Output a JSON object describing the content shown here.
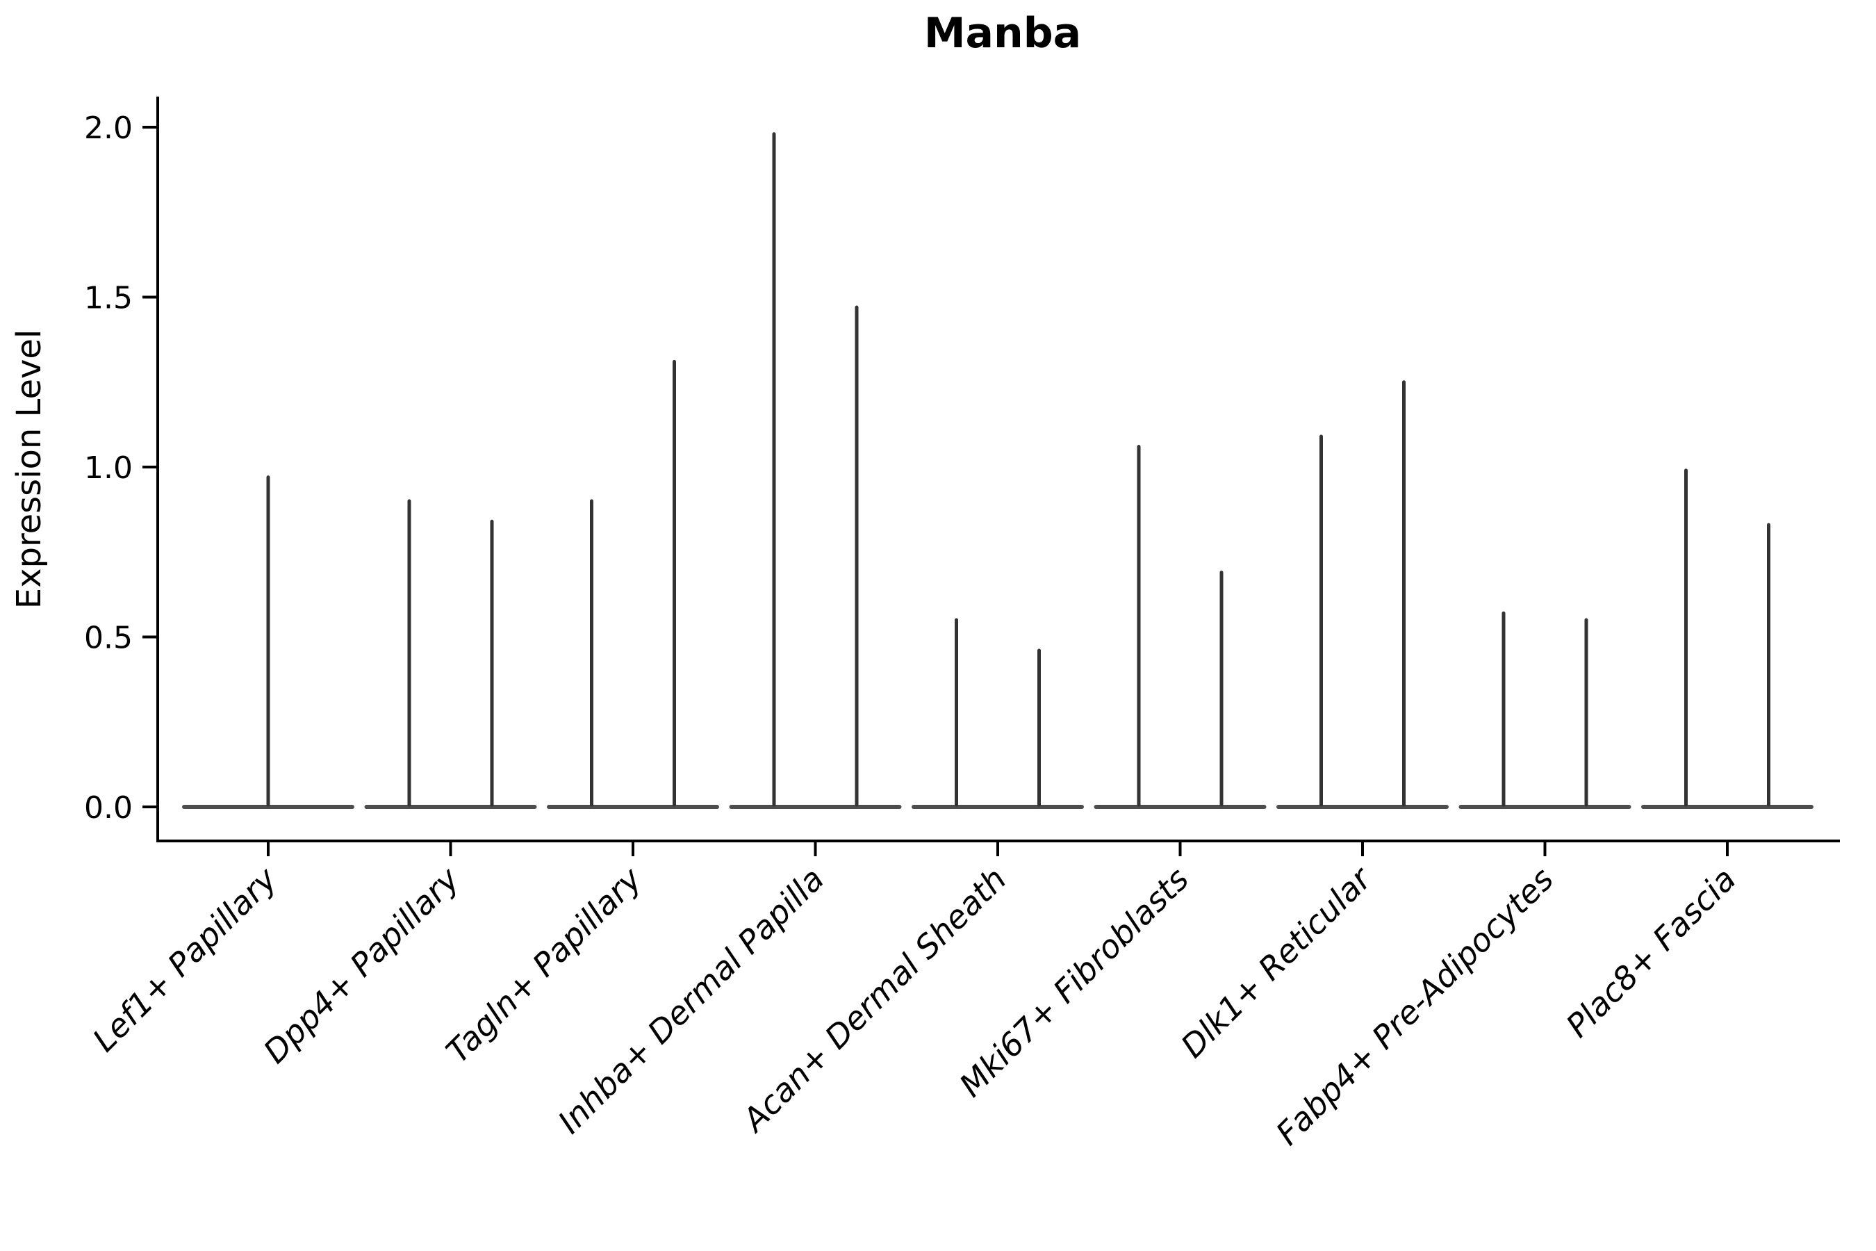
{
  "title": "Manba",
  "ylabel": "Expression Level",
  "chart_data": {
    "type": "violin",
    "title": "Manba",
    "xlabel": "",
    "ylabel": "Expression Level",
    "ylim": [
      0.0,
      2.0
    ],
    "yticks": [
      0.0,
      0.5,
      1.0,
      1.5,
      2.0
    ],
    "yticklabels": [
      "0.0",
      "0.5",
      "1.0",
      "1.5",
      "2.0"
    ],
    "grid": false,
    "legend": false,
    "baseline_value": 0.0,
    "categories": [
      "Lef1+ Papillary",
      "Dpp4+ Papillary",
      "Tagln+ Papillary",
      "Inhba+ Dermal Papilla",
      "Acan+ Dermal Sheath",
      "Mki67+ Fibroblasts",
      "Dlk1+ Reticular",
      "Fabp4+ Pre-Adipocytes",
      "Plac8+ Fascia"
    ],
    "violins": [
      {
        "category": "Lef1+ Papillary",
        "spikes": [
          0.97
        ]
      },
      {
        "category": "Dpp4+ Papillary",
        "spikes": [
          0.9,
          0.84
        ]
      },
      {
        "category": "Tagln+ Papillary",
        "spikes": [
          0.9,
          1.31
        ]
      },
      {
        "category": "Inhba+ Dermal Papilla",
        "spikes": [
          1.98,
          1.47
        ]
      },
      {
        "category": "Acan+ Dermal Sheath",
        "spikes": [
          0.55,
          0.46
        ]
      },
      {
        "category": "Mki67+ Fibroblasts",
        "spikes": [
          1.06,
          0.69
        ]
      },
      {
        "category": "Dlk1+ Reticular",
        "spikes": [
          1.09,
          1.25
        ]
      },
      {
        "category": "Fabp4+ Pre-Adipocytes",
        "spikes": [
          0.57,
          0.55
        ]
      },
      {
        "category": "Plac8+ Fascia",
        "spikes": [
          0.99,
          0.83
        ]
      }
    ],
    "colors": {
      "violin": "#333333",
      "violin_base": "#4d4d4d",
      "axis": "#000000",
      "background": "#ffffff"
    }
  }
}
